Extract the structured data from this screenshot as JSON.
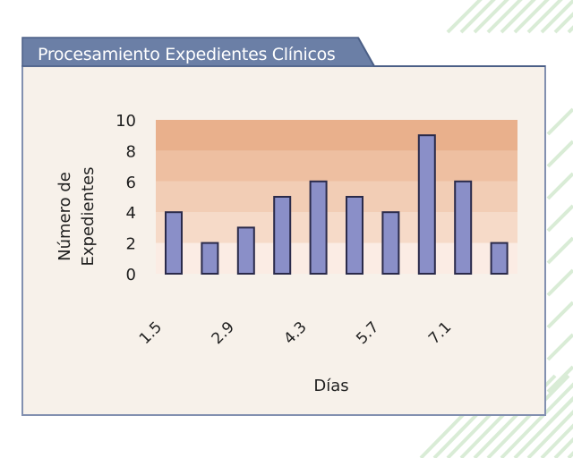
{
  "title": "Procesamiento Expedientes Clínicos",
  "colors": {
    "tab": "#6b7fa6",
    "tab_border": "#4b5f86",
    "panel_bg": "#f7f1ea",
    "panel_border": "#8290b0",
    "band_colors": [
      "#fbece4",
      "#f6dac8",
      "#f2cdb5",
      "#eebfa1",
      "#e9b08c"
    ],
    "bar_fill": "#8a8fc8",
    "stripe": "#d9ecd6"
  },
  "chart_data": {
    "type": "bar",
    "title": "Procesamiento Expedientes Clínicos",
    "xlabel": "Días",
    "ylabel_lines": [
      "Número de",
      "Expedientes"
    ],
    "ylim": [
      0,
      10
    ],
    "yticks": [
      "0",
      "2",
      "4",
      "6",
      "8",
      "10"
    ],
    "xtick_labels": [
      "1.5",
      "2.9",
      "4.3",
      "5.7",
      "7.1"
    ],
    "values": [
      4,
      2,
      3,
      5,
      6,
      5,
      4,
      9,
      6,
      2
    ],
    "grid": false,
    "legend": "none"
  }
}
